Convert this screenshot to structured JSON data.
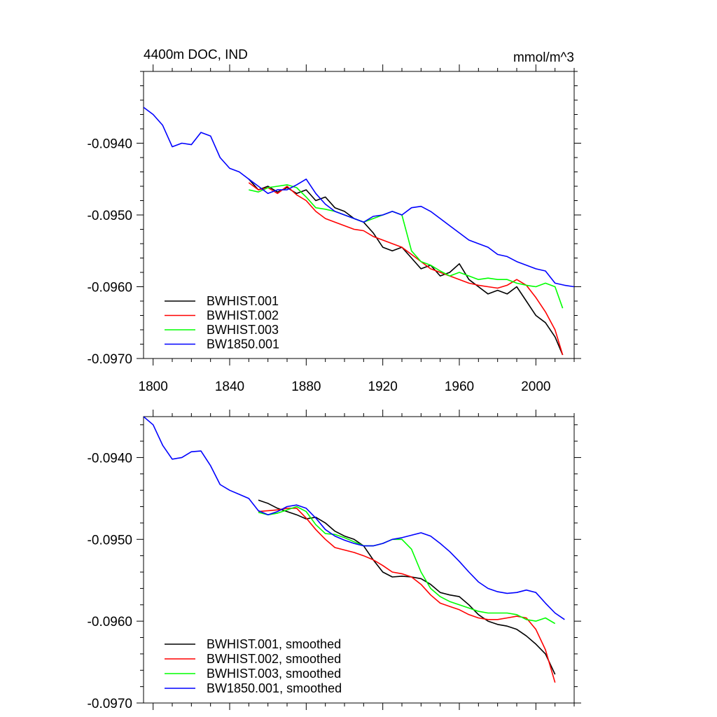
{
  "chart_data": [
    {
      "type": "line",
      "title": "4400m DOC, IND",
      "units": "mmol/m^3",
      "xlabel": "",
      "ylabel": "",
      "xlim": [
        1795,
        2020
      ],
      "ylim": [
        -0.097,
        -0.093
      ],
      "xticks": [
        1800,
        1840,
        1880,
        1920,
        1960,
        2000
      ],
      "yticks": [
        -0.094,
        -0.095,
        -0.096,
        -0.097
      ],
      "ytick_labels": [
        "-0.0940",
        "-0.0950",
        "-0.0960",
        "-0.0970"
      ],
      "legend_position": "bottom-left",
      "series": [
        {
          "name": "BWHIST.001",
          "color": "#000000",
          "x": [
            1850,
            1855,
            1860,
            1865,
            1870,
            1875,
            1880,
            1885,
            1890,
            1895,
            1900,
            1905,
            1910,
            1915,
            1920,
            1925,
            1930,
            1935,
            1940,
            1945,
            1950,
            1955,
            1960,
            1965,
            1970,
            1975,
            1980,
            1985,
            1990,
            1995,
            2000,
            2005,
            2010,
            2014
          ],
          "y": [
            -0.0945,
            -0.09465,
            -0.0946,
            -0.09468,
            -0.09462,
            -0.0947,
            -0.09465,
            -0.0948,
            -0.09475,
            -0.0949,
            -0.09495,
            -0.09505,
            -0.0951,
            -0.09525,
            -0.09545,
            -0.0955,
            -0.09545,
            -0.0956,
            -0.09575,
            -0.0957,
            -0.09585,
            -0.0958,
            -0.09568,
            -0.0959,
            -0.096,
            -0.0961,
            -0.09605,
            -0.0961,
            -0.096,
            -0.0962,
            -0.0964,
            -0.0965,
            -0.0967,
            -0.09695
          ]
        },
        {
          "name": "BWHIST.002",
          "color": "#ff0000",
          "x": [
            1850,
            1855,
            1860,
            1865,
            1870,
            1875,
            1880,
            1885,
            1890,
            1895,
            1900,
            1905,
            1910,
            1915,
            1920,
            1925,
            1930,
            1935,
            1940,
            1945,
            1950,
            1955,
            1960,
            1965,
            1970,
            1975,
            1980,
            1985,
            1990,
            1995,
            2000,
            2005,
            2010,
            2014
          ],
          "y": [
            -0.09455,
            -0.09465,
            -0.09462,
            -0.0947,
            -0.0946,
            -0.09472,
            -0.0948,
            -0.09495,
            -0.09505,
            -0.0951,
            -0.09515,
            -0.0952,
            -0.09522,
            -0.0953,
            -0.09535,
            -0.0954,
            -0.09545,
            -0.09555,
            -0.09565,
            -0.09575,
            -0.0958,
            -0.09585,
            -0.0959,
            -0.09595,
            -0.09598,
            -0.096,
            -0.09602,
            -0.09598,
            -0.0959,
            -0.09598,
            -0.09615,
            -0.09635,
            -0.0966,
            -0.09695
          ]
        },
        {
          "name": "BWHIST.003",
          "color": "#00ff00",
          "x": [
            1850,
            1855,
            1860,
            1865,
            1870,
            1875,
            1880,
            1885,
            1890,
            1895,
            1900,
            1905,
            1910,
            1915,
            1920,
            1925,
            1930,
            1935,
            1940,
            1945,
            1950,
            1955,
            1960,
            1965,
            1970,
            1975,
            1980,
            1985,
            1990,
            1995,
            2000,
            2005,
            2010,
            2014
          ],
          "y": [
            -0.09465,
            -0.09468,
            -0.09462,
            -0.0946,
            -0.09458,
            -0.09462,
            -0.09475,
            -0.0949,
            -0.09492,
            -0.09495,
            -0.095,
            -0.09505,
            -0.0951,
            -0.09505,
            -0.095,
            -0.09495,
            -0.095,
            -0.0955,
            -0.09565,
            -0.0957,
            -0.09578,
            -0.09585,
            -0.0958,
            -0.09585,
            -0.0959,
            -0.09588,
            -0.0959,
            -0.0959,
            -0.09595,
            -0.09598,
            -0.096,
            -0.09595,
            -0.096,
            -0.0963
          ]
        },
        {
          "name": "BW1850.001",
          "color": "#0000ff",
          "x": [
            1795,
            1800,
            1805,
            1810,
            1815,
            1820,
            1825,
            1830,
            1835,
            1840,
            1845,
            1850,
            1855,
            1860,
            1865,
            1870,
            1875,
            1880,
            1885,
            1890,
            1895,
            1900,
            1905,
            1910,
            1915,
            1920,
            1925,
            1930,
            1935,
            1940,
            1945,
            1950,
            1955,
            1960,
            1965,
            1970,
            1975,
            1980,
            1985,
            1990,
            1995,
            2000,
            2005,
            2010,
            2015,
            2020
          ],
          "y": [
            -0.0935,
            -0.0936,
            -0.09375,
            -0.09405,
            -0.094,
            -0.09402,
            -0.09385,
            -0.0939,
            -0.0942,
            -0.09435,
            -0.0944,
            -0.0945,
            -0.0946,
            -0.0947,
            -0.09465,
            -0.09465,
            -0.09458,
            -0.0945,
            -0.0947,
            -0.09485,
            -0.09495,
            -0.095,
            -0.09505,
            -0.0951,
            -0.09502,
            -0.095,
            -0.09495,
            -0.095,
            -0.0949,
            -0.09488,
            -0.09495,
            -0.09505,
            -0.09515,
            -0.09525,
            -0.09535,
            -0.0954,
            -0.09545,
            -0.09555,
            -0.09558,
            -0.09565,
            -0.0957,
            -0.09575,
            -0.09578,
            -0.09595,
            -0.09598,
            -0.096
          ]
        }
      ]
    },
    {
      "type": "line",
      "title": "",
      "xlabel": "",
      "ylabel": "",
      "xlim": [
        1795,
        2020
      ],
      "ylim": [
        -0.097,
        -0.0935
      ],
      "xticks": [
        1800,
        1840,
        1880,
        1920,
        1960,
        2000
      ],
      "yticks": [
        -0.094,
        -0.095,
        -0.096,
        -0.097
      ],
      "ytick_labels": [
        "-0.0940",
        "-0.0950",
        "-0.0960",
        "-0.0970"
      ],
      "legend_position": "bottom-left",
      "series": [
        {
          "name": "BWHIST.001, smoothed",
          "color": "#000000",
          "x": [
            1855,
            1860,
            1865,
            1870,
            1875,
            1880,
            1885,
            1890,
            1895,
            1900,
            1905,
            1910,
            1915,
            1920,
            1925,
            1930,
            1935,
            1940,
            1945,
            1950,
            1955,
            1960,
            1965,
            1970,
            1975,
            1980,
            1985,
            1990,
            1995,
            2000,
            2005,
            2010
          ],
          "y": [
            -0.09452,
            -0.09456,
            -0.09462,
            -0.09466,
            -0.0947,
            -0.09475,
            -0.09473,
            -0.0948,
            -0.0949,
            -0.09496,
            -0.095,
            -0.09508,
            -0.09525,
            -0.0954,
            -0.09546,
            -0.09545,
            -0.09546,
            -0.09548,
            -0.09555,
            -0.09565,
            -0.09568,
            -0.0957,
            -0.0958,
            -0.09592,
            -0.096,
            -0.09604,
            -0.09606,
            -0.0961,
            -0.09618,
            -0.09628,
            -0.0964,
            -0.09665
          ]
        },
        {
          "name": "BWHIST.002, smoothed",
          "color": "#ff0000",
          "x": [
            1855,
            1860,
            1865,
            1870,
            1875,
            1880,
            1885,
            1890,
            1895,
            1900,
            1905,
            1910,
            1915,
            1920,
            1925,
            1930,
            1935,
            1940,
            1945,
            1950,
            1955,
            1960,
            1965,
            1970,
            1975,
            1980,
            1985,
            1990,
            1995,
            2000,
            2005,
            2010
          ],
          "y": [
            -0.09466,
            -0.09465,
            -0.09464,
            -0.09462,
            -0.09462,
            -0.09474,
            -0.09488,
            -0.095,
            -0.0951,
            -0.09513,
            -0.09516,
            -0.0952,
            -0.09525,
            -0.09532,
            -0.0954,
            -0.09542,
            -0.09546,
            -0.09555,
            -0.09568,
            -0.09578,
            -0.09582,
            -0.09586,
            -0.09592,
            -0.09596,
            -0.09598,
            -0.09598,
            -0.09596,
            -0.09594,
            -0.09596,
            -0.0961,
            -0.09635,
            -0.09675
          ]
        },
        {
          "name": "BWHIST.003, smoothed",
          "color": "#00ff00",
          "x": [
            1855,
            1860,
            1865,
            1870,
            1875,
            1880,
            1885,
            1890,
            1895,
            1900,
            1905,
            1910,
            1915,
            1920,
            1925,
            1930,
            1935,
            1940,
            1945,
            1950,
            1955,
            1960,
            1965,
            1970,
            1975,
            1980,
            1985,
            1990,
            1995,
            2000,
            2005,
            2010
          ],
          "y": [
            -0.09467,
            -0.0947,
            -0.09468,
            -0.09464,
            -0.0946,
            -0.09466,
            -0.09482,
            -0.09493,
            -0.09494,
            -0.09498,
            -0.09503,
            -0.09508,
            -0.09508,
            -0.09505,
            -0.095,
            -0.095,
            -0.09512,
            -0.0954,
            -0.0956,
            -0.0957,
            -0.09576,
            -0.0958,
            -0.09584,
            -0.09588,
            -0.0959,
            -0.0959,
            -0.0959,
            -0.09592,
            -0.09598,
            -0.096,
            -0.09596,
            -0.09603
          ]
        },
        {
          "name": "BW1850.001, smoothed",
          "color": "#0000ff",
          "x": [
            1795,
            1800,
            1805,
            1810,
            1815,
            1820,
            1825,
            1830,
            1835,
            1840,
            1845,
            1850,
            1855,
            1860,
            1865,
            1870,
            1875,
            1880,
            1885,
            1890,
            1895,
            1900,
            1905,
            1910,
            1915,
            1920,
            1925,
            1930,
            1935,
            1940,
            1945,
            1950,
            1955,
            1960,
            1965,
            1970,
            1975,
            1980,
            1985,
            1990,
            1995,
            2000,
            2005,
            2010,
            2015
          ],
          "y": [
            -0.0935,
            -0.0936,
            -0.09385,
            -0.09402,
            -0.094,
            -0.09393,
            -0.09392,
            -0.0941,
            -0.09433,
            -0.0944,
            -0.09445,
            -0.0945,
            -0.09465,
            -0.0947,
            -0.09466,
            -0.0946,
            -0.09458,
            -0.09462,
            -0.09474,
            -0.09488,
            -0.09496,
            -0.09501,
            -0.09505,
            -0.09508,
            -0.09508,
            -0.09505,
            -0.095,
            -0.09498,
            -0.09495,
            -0.09492,
            -0.09496,
            -0.09505,
            -0.09515,
            -0.09527,
            -0.0954,
            -0.09552,
            -0.0956,
            -0.09564,
            -0.09566,
            -0.09565,
            -0.09562,
            -0.09565,
            -0.09578,
            -0.0959,
            -0.09598
          ]
        }
      ]
    }
  ]
}
